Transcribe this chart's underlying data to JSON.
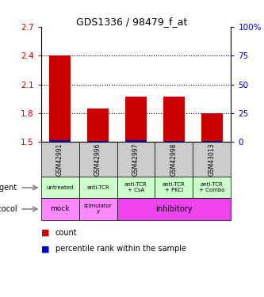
{
  "title": "GDS1336 / 98479_f_at",
  "samples": [
    "GSM42991",
    "GSM42996",
    "GSM42997",
    "GSM42998",
    "GSM43013"
  ],
  "count_values": [
    2.398,
    1.848,
    1.97,
    1.97,
    1.8
  ],
  "percentile_values": [
    1.515,
    1.51,
    1.515,
    1.512,
    1.513
  ],
  "bar_bottom": 1.5,
  "ylim_left": [
    1.5,
    2.7
  ],
  "yticks_left": [
    1.5,
    1.8,
    2.1,
    2.4,
    2.7
  ],
  "ylim_right": [
    0,
    100
  ],
  "yticks_right": [
    0,
    25,
    50,
    75,
    100
  ],
  "yticklabels_right": [
    "0",
    "25",
    "50",
    "75",
    "100%"
  ],
  "bar_color": "#cc0000",
  "percentile_color": "#0000cc",
  "agent_labels": [
    "untreated",
    "anti-TCR",
    "anti-TCR\n+ CsA",
    "anti-TCR\n+ PKCi",
    "anti-TCR\n+ Combo"
  ],
  "agent_bg": "#ccffcc",
  "protocol_bg_mock": "#ff88ff",
  "protocol_bg_stim": "#ff88ff",
  "protocol_bg_inhib": "#ee44ee",
  "gsm_bg": "#cccccc",
  "left_tick_color": "#cc0000",
  "right_tick_color": "#0000cc"
}
